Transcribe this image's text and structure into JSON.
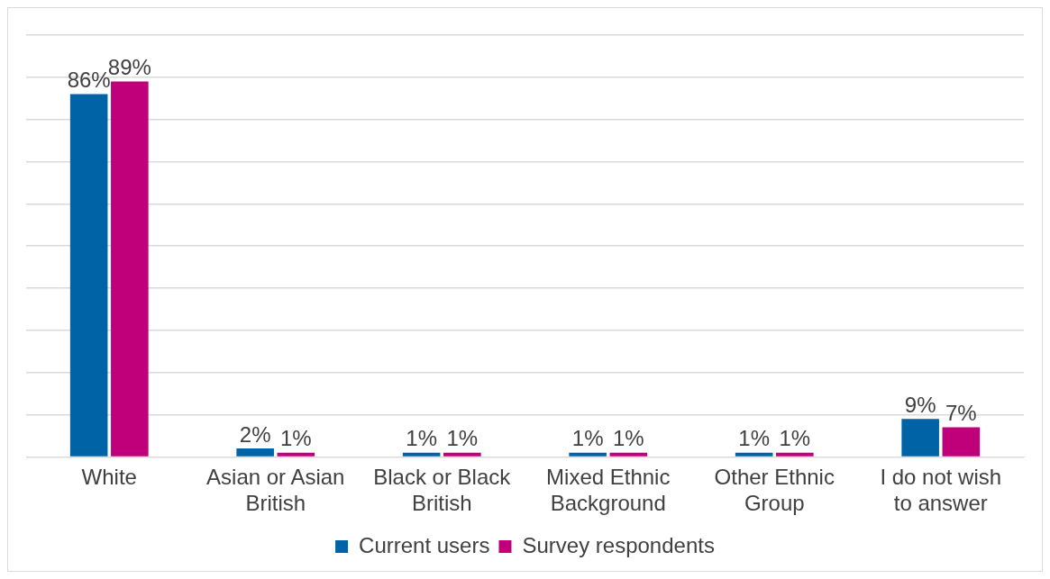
{
  "chart_data": {
    "type": "bar",
    "categories": [
      "White",
      "Asian or Asian British",
      "Black or Black British",
      "Mixed Ethnic Background",
      "Other Ethnic Group",
      "I do not wish to answer"
    ],
    "series": [
      {
        "name": "Current users",
        "color": "#0063a6",
        "values": [
          86,
          2,
          1,
          1,
          1,
          9
        ],
        "value_labels": [
          "86%",
          "2%",
          "1%",
          "1%",
          "1%",
          "9%"
        ]
      },
      {
        "name": "Survey respondents",
        "color": "#c0007a",
        "values": [
          89,
          1,
          1,
          1,
          1,
          7
        ],
        "value_labels": [
          "89%",
          "1%",
          "1%",
          "1%",
          "1%",
          "7%"
        ]
      }
    ],
    "ylim": [
      0,
      100
    ],
    "yticks": [
      0,
      10,
      20,
      30,
      40,
      50,
      60,
      70,
      80,
      90,
      100
    ],
    "grid": "y",
    "tick_labels": "x",
    "legend": "bottom"
  }
}
